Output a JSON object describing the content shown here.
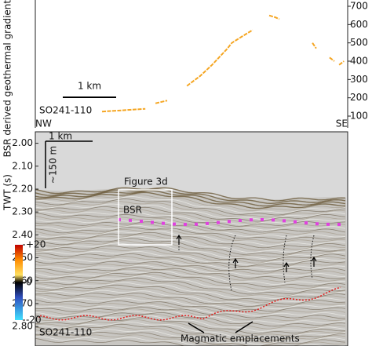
{
  "chart_data": [
    {
      "type": "line",
      "y2label": "BSR derived geothermal gradient (°C/km)",
      "scale_label": "1 km",
      "profile_label": "SO241-110",
      "left_end": "NW",
      "right_end": "SE",
      "x": [
        1.25,
        1.54,
        2.06,
        null,
        2.25,
        2.47,
        null,
        2.84,
        3.09,
        3.31,
        3.6,
        3.68,
        3.9,
        4.07,
        null,
        4.38,
        4.49,
        4.57,
        null,
        5.19,
        5.26,
        null,
        5.51,
        5.6,
        null,
        5.69,
        5.78
      ],
      "series": [
        {
          "color": "#f5a623",
          "axis": "y2",
          "values": [
            125,
            130,
            140,
            null,
            170,
            185,
            null,
            265,
            320,
            380,
            470,
            500,
            540,
            570,
            null,
            650,
            640,
            630,
            null,
            500,
            470,
            null,
            420,
            400,
            null,
            380,
            400
          ]
        }
      ],
      "xlim": [
        0,
        5.85
      ],
      "y2lim": [
        100,
        700
      ],
      "y2ticks": [
        100,
        200,
        300,
        400,
        500,
        600,
        700
      ]
    },
    {
      "type": "seismic",
      "ylabel": "TWT (s)",
      "scale_label": "1 km",
      "vertical_scale_label": "~150 m",
      "inset_label": "Figure 3d",
      "bsr_label": "BSR",
      "profile_label": "SO241-110",
      "annotation": "Magmatic emplacements",
      "ylim": [
        1.95,
        2.885
      ],
      "yticks": [
        {
          "value": 2.0,
          "label": "2.00"
        },
        {
          "value": 2.1,
          "label": "2.10"
        },
        {
          "value": 2.2,
          "label": "2.20"
        },
        {
          "value": 2.3,
          "label": "2.30"
        },
        {
          "value": 2.4,
          "label": "2.40"
        },
        {
          "value": 2.5,
          "label": "2.50"
        },
        {
          "value": 2.6,
          "label": "2.60"
        },
        {
          "value": 2.7,
          "label": "2.70"
        },
        {
          "value": 2.8,
          "label": "2.80"
        }
      ],
      "colorbar_ticks": [
        {
          "value": 20,
          "label": "+20"
        },
        0,
        {
          "value": -20,
          "label": "-20"
        }
      ]
    }
  ]
}
